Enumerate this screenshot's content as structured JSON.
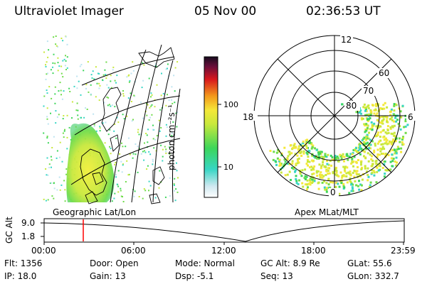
{
  "header": {
    "title": "Ultraviolet Imager",
    "date": "05 Nov 00",
    "time": "02:36:53 UT"
  },
  "left_panel": {
    "caption": "Geographic Lat/Lon"
  },
  "colorbar": {
    "unit_label": "photon cm⁻²s⁻¹",
    "ticks": [
      "100",
      "10"
    ],
    "scale": "log"
  },
  "polar_panel": {
    "caption": "Apex MLat/MLT",
    "lat_labels": [
      "60",
      "70",
      "80"
    ],
    "mlt_labels": [
      "12",
      "18",
      "6",
      "0"
    ]
  },
  "timeline": {
    "ylabel": "GC Alt",
    "yticks": [
      "9.0",
      "1.8"
    ],
    "xticks": [
      "00:00",
      "06:00",
      "12:00",
      "18:00",
      "23:59"
    ],
    "marker_time": "02:36:53"
  },
  "status": {
    "flt": "Flt:  1356",
    "ip": "IP: 18.0",
    "door": "Door:  Open",
    "gain": "Gain: 13",
    "mode": "Mode:  Normal",
    "dsp": "Dsp:      -5.1",
    "gcalt": "GC Alt:  8.9 Re",
    "seq": "Seq:  13",
    "glat": "GLat:    55.6",
    "glon": "GLon:  332.7"
  },
  "colors": {
    "marker": "#ff0000",
    "accent": "#000000"
  }
}
